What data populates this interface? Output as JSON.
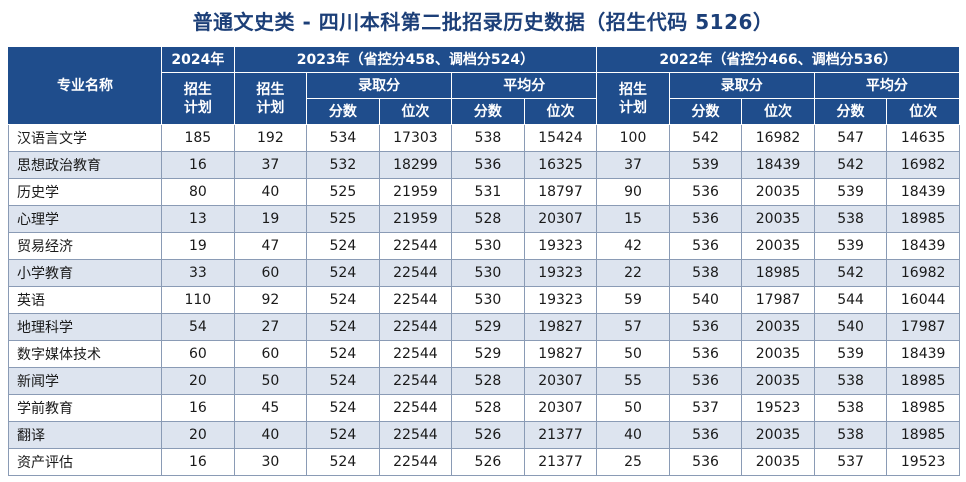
{
  "title": "普通文史类 - 四川本科第二批招录历史数据（招生代码 5126）",
  "header": {
    "major_name": "专业名称",
    "year_2024": "2024年",
    "year_2023": "2023年（省控分458、调档分524）",
    "year_2022": "2022年（省控分466、调档分536）",
    "plan": "招生计划",
    "admit_score": "录取分",
    "avg_score": "平均分",
    "score": "分数",
    "rank": "位次"
  },
  "rows": [
    {
      "name": "汉语言文学",
      "plan2024": "185",
      "plan2023": "192",
      "adm2023": "534",
      "admrank2023": "17303",
      "avg2023": "538",
      "avgrank2023": "15424",
      "plan2022": "100",
      "adm2022": "542",
      "admrank2022": "16982",
      "avg2022": "547",
      "avgrank2022": "14635"
    },
    {
      "name": "思想政治教育",
      "plan2024": "16",
      "plan2023": "37",
      "adm2023": "532",
      "admrank2023": "18299",
      "avg2023": "536",
      "avgrank2023": "16325",
      "plan2022": "37",
      "adm2022": "539",
      "admrank2022": "18439",
      "avg2022": "542",
      "avgrank2022": "16982"
    },
    {
      "name": "历史学",
      "plan2024": "80",
      "plan2023": "40",
      "adm2023": "525",
      "admrank2023": "21959",
      "avg2023": "531",
      "avgrank2023": "18797",
      "plan2022": "90",
      "adm2022": "536",
      "admrank2022": "20035",
      "avg2022": "539",
      "avgrank2022": "18439"
    },
    {
      "name": "心理学",
      "plan2024": "13",
      "plan2023": "19",
      "adm2023": "525",
      "admrank2023": "21959",
      "avg2023": "528",
      "avgrank2023": "20307",
      "plan2022": "15",
      "adm2022": "536",
      "admrank2022": "20035",
      "avg2022": "538",
      "avgrank2022": "18985"
    },
    {
      "name": "贸易经济",
      "plan2024": "19",
      "plan2023": "47",
      "adm2023": "524",
      "admrank2023": "22544",
      "avg2023": "530",
      "avgrank2023": "19323",
      "plan2022": "42",
      "adm2022": "536",
      "admrank2022": "20035",
      "avg2022": "539",
      "avgrank2022": "18439"
    },
    {
      "name": "小学教育",
      "plan2024": "33",
      "plan2023": "60",
      "adm2023": "524",
      "admrank2023": "22544",
      "avg2023": "530",
      "avgrank2023": "19323",
      "plan2022": "22",
      "adm2022": "538",
      "admrank2022": "18985",
      "avg2022": "542",
      "avgrank2022": "16982"
    },
    {
      "name": "英语",
      "plan2024": "110",
      "plan2023": "92",
      "adm2023": "524",
      "admrank2023": "22544",
      "avg2023": "530",
      "avgrank2023": "19323",
      "plan2022": "59",
      "adm2022": "540",
      "admrank2022": "17987",
      "avg2022": "544",
      "avgrank2022": "16044"
    },
    {
      "name": "地理科学",
      "plan2024": "54",
      "plan2023": "27",
      "adm2023": "524",
      "admrank2023": "22544",
      "avg2023": "529",
      "avgrank2023": "19827",
      "plan2022": "57",
      "adm2022": "536",
      "admrank2022": "20035",
      "avg2022": "540",
      "avgrank2022": "17987"
    },
    {
      "name": "数字媒体技术",
      "plan2024": "60",
      "plan2023": "60",
      "adm2023": "524",
      "admrank2023": "22544",
      "avg2023": "529",
      "avgrank2023": "19827",
      "plan2022": "50",
      "adm2022": "536",
      "admrank2022": "20035",
      "avg2022": "539",
      "avgrank2022": "18439"
    },
    {
      "name": "新闻学",
      "plan2024": "20",
      "plan2023": "50",
      "adm2023": "524",
      "admrank2023": "22544",
      "avg2023": "528",
      "avgrank2023": "20307",
      "plan2022": "55",
      "adm2022": "536",
      "admrank2022": "20035",
      "avg2022": "538",
      "avgrank2022": "18985"
    },
    {
      "name": "学前教育",
      "plan2024": "16",
      "plan2023": "45",
      "adm2023": "524",
      "admrank2023": "22544",
      "avg2023": "528",
      "avgrank2023": "20307",
      "plan2022": "50",
      "adm2022": "537",
      "admrank2022": "19523",
      "avg2022": "538",
      "avgrank2022": "18985"
    },
    {
      "name": "翻译",
      "plan2024": "20",
      "plan2023": "40",
      "adm2023": "524",
      "admrank2023": "22544",
      "avg2023": "526",
      "avgrank2023": "21377",
      "plan2022": "40",
      "adm2022": "536",
      "admrank2022": "20035",
      "avg2022": "538",
      "avgrank2022": "18985"
    },
    {
      "name": "资产评估",
      "plan2024": "16",
      "plan2023": "30",
      "adm2023": "524",
      "admrank2023": "22544",
      "avg2023": "526",
      "avgrank2023": "21377",
      "plan2022": "25",
      "adm2022": "536",
      "admrank2022": "20035",
      "avg2022": "537",
      "avgrank2022": "19523"
    }
  ]
}
